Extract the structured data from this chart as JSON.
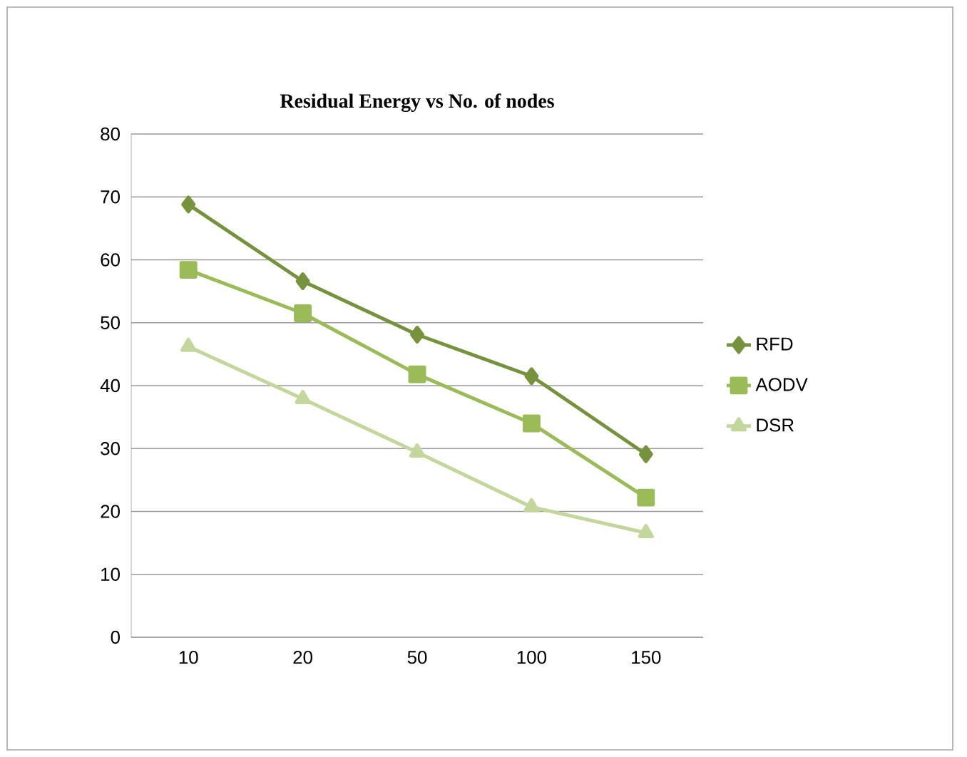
{
  "chart_data": {
    "type": "line",
    "title": "Residual Energy vs No. of nodes",
    "categories": [
      "10",
      "20",
      "50",
      "100",
      "150"
    ],
    "series": [
      {
        "name": "RFD",
        "color": "#76923c",
        "marker": "diamond",
        "values": [
          68.8,
          56.6,
          48.1,
          41.5,
          29.1
        ]
      },
      {
        "name": "AODV",
        "color": "#9bbb59",
        "marker": "square",
        "values": [
          58.4,
          51.5,
          41.8,
          34.0,
          22.2
        ]
      },
      {
        "name": "DSR",
        "color": "#c3d69b",
        "marker": "triangle",
        "values": [
          46.2,
          37.9,
          29.4,
          20.7,
          16.6
        ]
      }
    ],
    "ylim": [
      0,
      80
    ],
    "yticks": [
      0,
      10,
      20,
      30,
      40,
      50,
      60,
      70,
      80
    ],
    "grid": "y",
    "legend": "right"
  }
}
